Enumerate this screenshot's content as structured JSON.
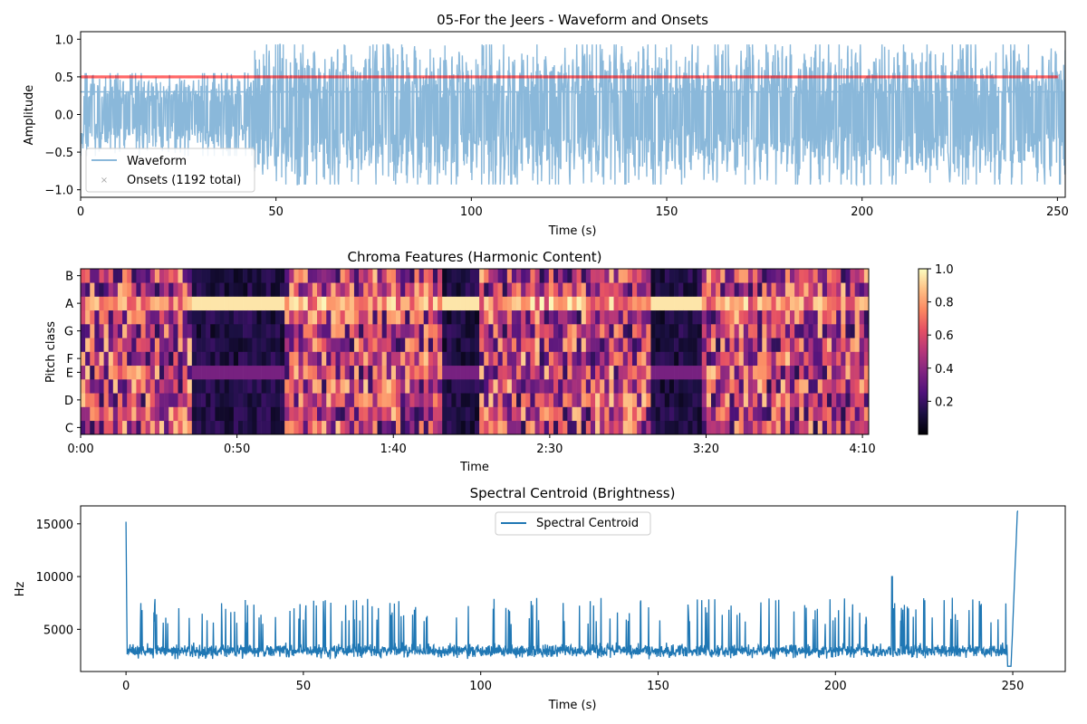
{
  "chart_data": [
    {
      "type": "line",
      "title": "05-For the Jeers - Waveform and Onsets",
      "xlabel": "Time (s)",
      "ylabel": "Amplitude",
      "xlim": [
        0,
        252
      ],
      "ylim": [
        -1.1,
        1.1
      ],
      "xticks": [
        "0",
        "50",
        "100",
        "150",
        "200",
        "250"
      ],
      "yticks": [
        "−1.0",
        "−0.5",
        "0.0",
        "0.5",
        "1.0"
      ],
      "series": [
        {
          "name": "Waveform",
          "color": "#8ab8da",
          "style": "dense audio waveform, amplitude mostly within ±0.6 (first 45 s) and ±0.95 afterwards"
        },
        {
          "name": "Onsets (1192 total)",
          "color": "#ff0000",
          "count": 1192,
          "y": 0.5,
          "marker": "x"
        }
      ],
      "hline": {
        "y": 0.3,
        "color": "#8ab8da"
      },
      "legend": [
        "Waveform",
        "Onsets (1192 total)"
      ],
      "legend_position": "lower-left"
    },
    {
      "type": "heatmap",
      "title": "Chroma Features (Harmonic Content)",
      "xlabel": "Time",
      "ylabel": "Pitch class",
      "xticks": [
        "0:00",
        "0:50",
        "1:40",
        "2:30",
        "3:20",
        "4:10"
      ],
      "xtick_seconds": [
        0,
        50,
        100,
        150,
        200,
        250
      ],
      "duration_s": 252,
      "yticks": [
        "C",
        "D",
        "E",
        "F",
        "G",
        "A",
        "B"
      ],
      "pitch_classes": [
        "C",
        "C#",
        "D",
        "D#",
        "E",
        "F",
        "F#",
        "G",
        "G#",
        "A",
        "A#",
        "B"
      ],
      "colorbar": {
        "min": 0.0,
        "max": 1.0,
        "ticks": [
          "0.2",
          "0.4",
          "0.6",
          "0.8",
          "1.0"
        ],
        "colormap": "magma"
      },
      "dominant_pitch": "A",
      "quiet_sections_s": [
        [
          35,
          50
        ],
        [
          50,
          65
        ],
        [
          115,
          128
        ],
        [
          182,
          198
        ]
      ]
    },
    {
      "type": "line",
      "title": "Spectral Centroid (Brightness)",
      "xlabel": "Time (s)",
      "ylabel": "Hz",
      "xlim": [
        -12.8,
        264.8
      ],
      "ylim": [
        1000,
        16700
      ],
      "xticks": [
        "0",
        "50",
        "100",
        "150",
        "200",
        "250"
      ],
      "yticks": [
        "5000",
        "10000",
        "15000"
      ],
      "series": [
        {
          "name": "Spectral Centroid",
          "color": "#1f77b4",
          "typical_range_hz": [
            2000,
            5500
          ],
          "peaks": [
            {
              "x": 0,
              "y": 15200
            },
            {
              "x": 216,
              "y": 10000
            },
            {
              "x": 251.5,
              "y": 16200
            }
          ]
        }
      ],
      "legend": [
        "Spectral Centroid"
      ],
      "legend_position": "upper-center"
    }
  ]
}
